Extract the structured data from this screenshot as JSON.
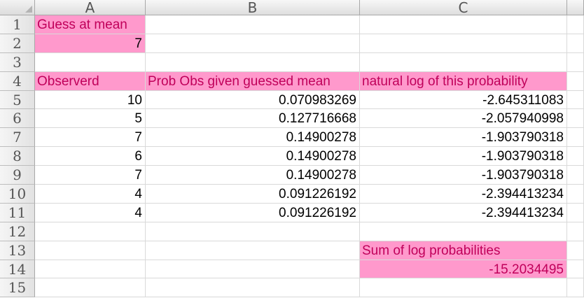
{
  "columns": [
    "A",
    "B",
    "C"
  ],
  "rows": [
    "1",
    "2",
    "3",
    "4",
    "5",
    "6",
    "7",
    "8",
    "9",
    "10",
    "11",
    "12",
    "13",
    "14",
    "15"
  ],
  "labels": {
    "guess_at_mean": "Guess at mean",
    "guess_value": "7",
    "col_observed": "Observerd",
    "col_prob": "Prob Obs given guessed mean",
    "col_log": "natural log of this probability",
    "sum_label": "Sum of log probabilities",
    "sum_value": "-15.2034495"
  },
  "data_rows": [
    {
      "observed": "10",
      "prob": "0.070983269",
      "log": "-2.645311083"
    },
    {
      "observed": "5",
      "prob": "0.127716668",
      "log": "-2.057940998"
    },
    {
      "observed": "7",
      "prob": "0.14900278",
      "log": "-1.903790318"
    },
    {
      "observed": "6",
      "prob": "0.14900278",
      "log": "-1.903790318"
    },
    {
      "observed": "7",
      "prob": "0.14900278",
      "log": "-1.903790318"
    },
    {
      "observed": "4",
      "prob": "0.091226192",
      "log": "-2.394413234"
    },
    {
      "observed": "4",
      "prob": "0.091226192",
      "log": "-2.394413234"
    }
  ],
  "colors": {
    "highlight": "#ff99cc",
    "text_accent": "#c0005a"
  }
}
